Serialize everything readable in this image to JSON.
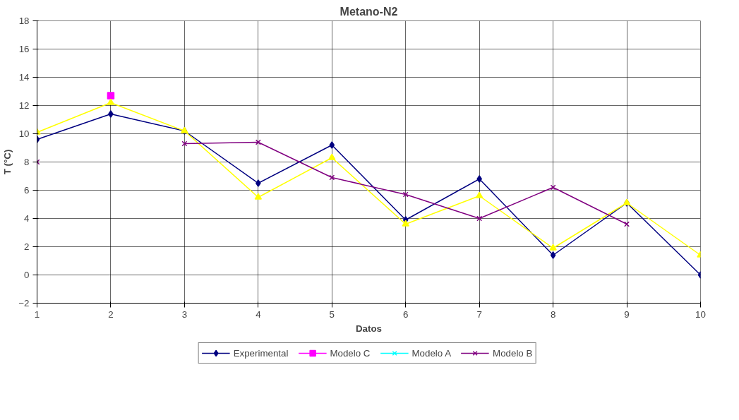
{
  "chart_data": {
    "type": "line",
    "title": "Metano-N2",
    "xlabel": "Datos",
    "ylabel": "T (°C)",
    "x": [
      1,
      2,
      3,
      4,
      5,
      6,
      7,
      8,
      9,
      10
    ],
    "xlim": [
      1,
      10
    ],
    "xticks": [
      1,
      2,
      3,
      4,
      5,
      6,
      7,
      8,
      9,
      10
    ],
    "ylim": [
      -2,
      18
    ],
    "yticks": [
      -2,
      0,
      2,
      4,
      6,
      8,
      10,
      12,
      14,
      16,
      18
    ],
    "grid": true,
    "legend": "bottom",
    "series": [
      {
        "name": "Experimental",
        "color": "#000080",
        "marker": "diamond",
        "values": [
          9.6,
          11.4,
          10.2,
          6.5,
          9.2,
          3.9,
          6.8,
          1.4,
          5.1,
          0
        ]
      },
      {
        "name": "Modelo C",
        "color": "#ff00ff",
        "marker": "square",
        "values": [
          null,
          12.7,
          null,
          null,
          null,
          null,
          null,
          null,
          null,
          null
        ]
      },
      {
        "color": "#ffff00",
        "marker": "triangle",
        "values": [
          10.1,
          12.2,
          10.2,
          5.5,
          8.3,
          3.6,
          5.6,
          1.9,
          5.1,
          1.4
        ]
      },
      {
        "name": "Modelo A",
        "color": "#00ffff",
        "marker": "cross",
        "values": [
          null,
          null,
          null,
          null,
          null,
          null,
          null,
          null,
          null,
          null
        ]
      },
      {
        "name": "Modelo B",
        "color": "#800080",
        "marker": "cross",
        "values": [
          8.0,
          null,
          9.3,
          9.4,
          6.9,
          5.7,
          4.0,
          6.2,
          3.6,
          null
        ]
      }
    ]
  }
}
